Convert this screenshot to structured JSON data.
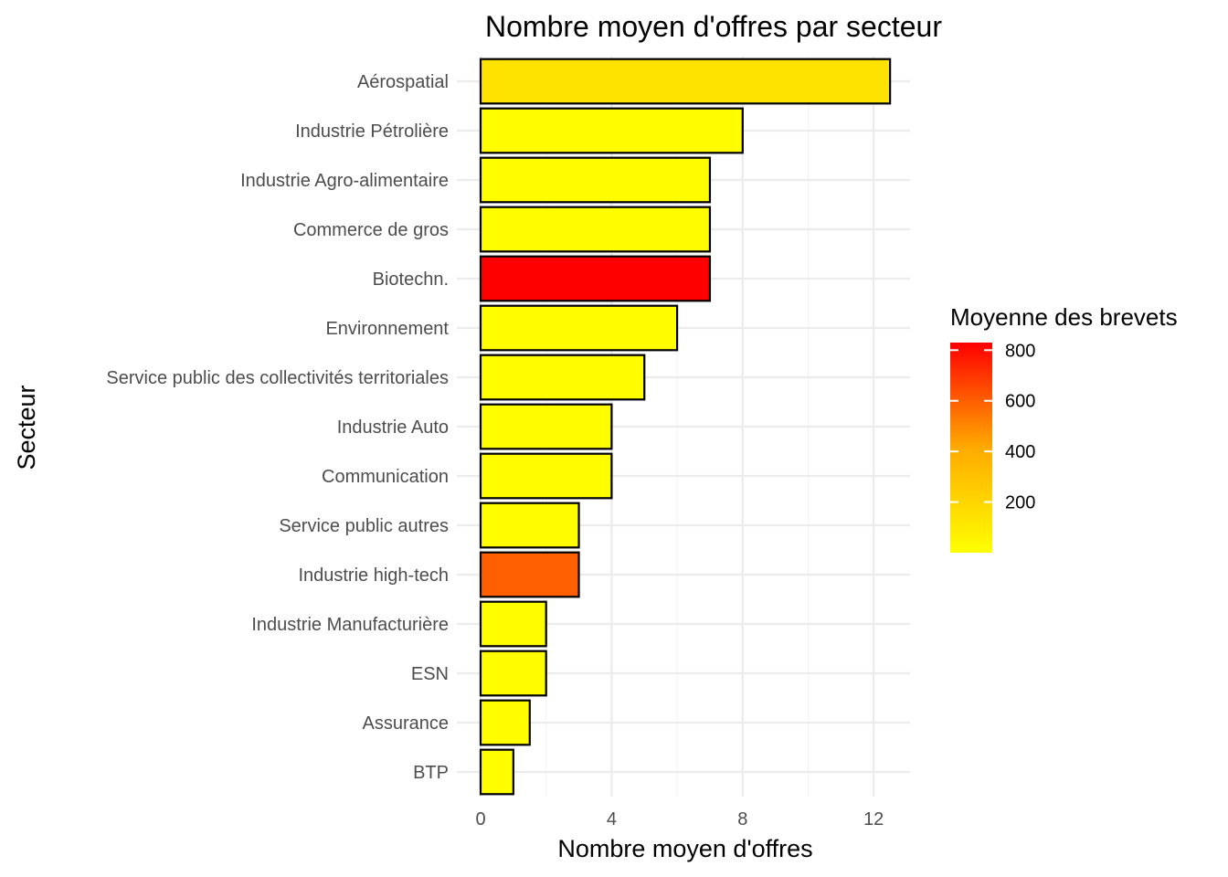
{
  "chart_data": {
    "type": "bar",
    "orientation": "horizontal",
    "title": "Nombre moyen d'offres par secteur",
    "xlabel": "Nombre moyen d'offres",
    "ylabel": "Secteur",
    "xlim": [
      0,
      13
    ],
    "x_ticks": [
      0,
      4,
      8,
      12
    ],
    "grid": true,
    "categories": [
      "Aérospatial",
      "Industrie Pétrolière",
      "Industrie Agro-alimentaire",
      "Commerce de gros",
      "Biotechn.",
      "Environnement",
      "Service public des collectivités territoriales",
      "Industrie Auto",
      "Communication",
      "Service public autres",
      "Industrie high-tech",
      "Industrie Manufacturière",
      "ESN",
      "Assurance",
      "BTP"
    ],
    "values": [
      12.5,
      8,
      7,
      7,
      7,
      6,
      5,
      4,
      4,
      3,
      3,
      2,
      2,
      1.5,
      1
    ],
    "fill_values": [
      90,
      5,
      5,
      5,
      830,
      5,
      5,
      5,
      5,
      5,
      520,
      5,
      5,
      5,
      5
    ],
    "legend": {
      "title": "Moyenne des brevets",
      "placement": "right",
      "ticks": [
        200,
        400,
        600,
        800
      ],
      "range": [
        0,
        830
      ],
      "colors": [
        "#ffff00",
        "#ff0000"
      ]
    }
  }
}
